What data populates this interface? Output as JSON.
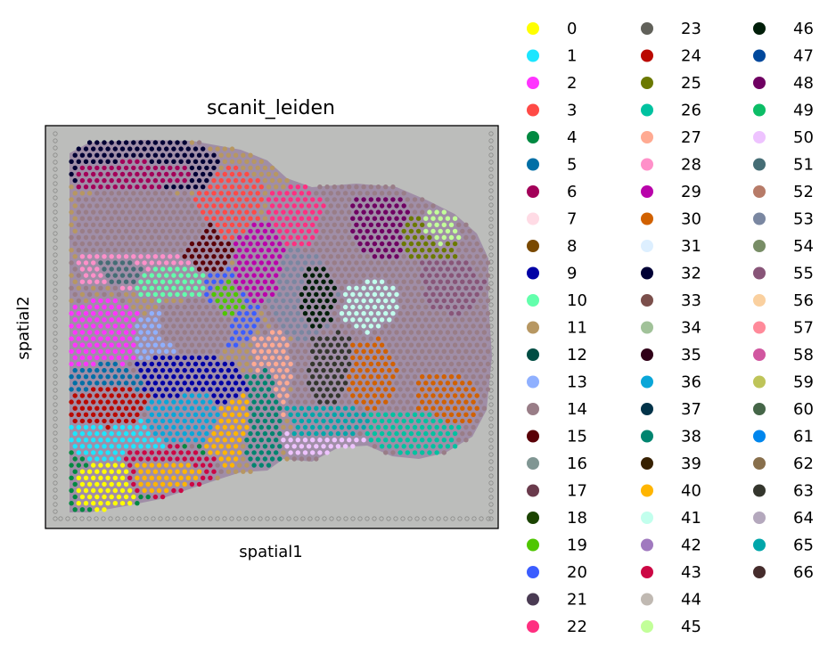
{
  "chart_data": {
    "type": "scatter",
    "title": "scanit_leiden",
    "xlabel": "spatial1",
    "ylabel": "spatial2",
    "grid": false,
    "legend_position": "right",
    "legend_columns": 3,
    "background": "grayscale tissue histology image",
    "categories": [
      "0",
      "1",
      "2",
      "3",
      "4",
      "5",
      "6",
      "7",
      "8",
      "9",
      "10",
      "11",
      "12",
      "13",
      "14",
      "15",
      "16",
      "17",
      "18",
      "19",
      "20",
      "21",
      "22",
      "23",
      "24",
      "25",
      "26",
      "27",
      "28",
      "29",
      "30",
      "31",
      "32",
      "33",
      "34",
      "35",
      "36",
      "37",
      "38",
      "39",
      "40",
      "41",
      "42",
      "43",
      "44",
      "45",
      "46",
      "47",
      "48",
      "49",
      "50",
      "51",
      "52",
      "53",
      "54",
      "55",
      "56",
      "57",
      "58",
      "59",
      "60",
      "61",
      "62",
      "63",
      "64",
      "65",
      "66"
    ],
    "colors": [
      "#ffff00",
      "#1ce6ff",
      "#ff34ff",
      "#ff4a46",
      "#008941",
      "#006fa6",
      "#a30059",
      "#ffdbe5",
      "#7a4900",
      "#0000a6",
      "#63ffac",
      "#b79762",
      "#004d43",
      "#8fb0ff",
      "#997d87",
      "#5a0007",
      "#809693",
      "#6a3a4c",
      "#1b4400",
      "#4fc601",
      "#3b5dff",
      "#4a3b53",
      "#ff2f80",
      "#61615a",
      "#ba0900",
      "#6b7900",
      "#00c2a0",
      "#ffaa92",
      "#ff90c9",
      "#b903aa",
      "#d16100",
      "#ddefff",
      "#000035",
      "#7b4f4b",
      "#a1c299",
      "#300018",
      "#0aa6d8",
      "#013349",
      "#00846f",
      "#372101",
      "#ffb500",
      "#c2ffed",
      "#a079bf",
      "#cc0744",
      "#c0b9b2",
      "#c2ff99",
      "#001e09",
      "#00489c",
      "#6f0062",
      "#0cbd66",
      "#eec3ff",
      "#456d75",
      "#b77b68",
      "#7a87a1",
      "#788d66",
      "#885578",
      "#fad09f",
      "#ff8a9a",
      "#d157a0",
      "#bec459",
      "#456648",
      "#0086ed",
      "#886f4c",
      "#34362d",
      "#b4a8bd",
      "#00a6aa",
      "#452c2c"
    ]
  }
}
